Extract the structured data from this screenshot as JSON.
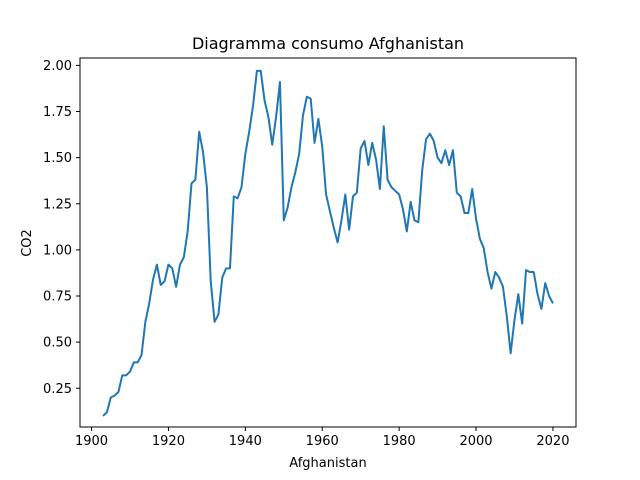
{
  "chart_data": {
    "type": "line",
    "title": "Diagramma consumo Afghanistan",
    "xlabel": "Afghanistan",
    "ylabel": "CO2",
    "xlim": [
      1897,
      2026
    ],
    "ylim": [
      0.04,
      2.04
    ],
    "x_ticks": [
      1900,
      1920,
      1940,
      1960,
      1980,
      2000,
      2020
    ],
    "x_tick_labels": [
      "1900",
      "1920",
      "1940",
      "1960",
      "1980",
      "2000",
      "2020"
    ],
    "y_ticks": [
      0.25,
      0.5,
      0.75,
      1.0,
      1.25,
      1.5,
      1.75,
      2.0
    ],
    "y_tick_labels": [
      "0.25",
      "0.50",
      "0.75",
      "1.00",
      "1.25",
      "1.50",
      "1.75",
      "2.00"
    ],
    "grid": false,
    "series": [
      {
        "color": "#1f77b4",
        "x": [
          1903,
          1904,
          1905,
          1906,
          1907,
          1908,
          1909,
          1910,
          1911,
          1912,
          1913,
          1914,
          1915,
          1916,
          1917,
          1918,
          1919,
          1920,
          1921,
          1922,
          1923,
          1924,
          1925,
          1926,
          1927,
          1928,
          1929,
          1930,
          1931,
          1932,
          1933,
          1934,
          1935,
          1936,
          1937,
          1938,
          1939,
          1940,
          1941,
          1942,
          1943,
          1944,
          1945,
          1946,
          1947,
          1948,
          1949,
          1950,
          1951,
          1952,
          1953,
          1954,
          1955,
          1956,
          1957,
          1958,
          1959,
          1960,
          1961,
          1962,
          1963,
          1964,
          1965,
          1966,
          1967,
          1968,
          1969,
          1970,
          1971,
          1972,
          1973,
          1974,
          1975,
          1976,
          1977,
          1978,
          1979,
          1980,
          1981,
          1982,
          1983,
          1984,
          1985,
          1986,
          1987,
          1988,
          1989,
          1990,
          1991,
          1992,
          1993,
          1994,
          1995,
          1996,
          1997,
          1998,
          1999,
          2000,
          2001,
          2002,
          2003,
          2004,
          2005,
          2006,
          2007,
          2008,
          2009,
          2010,
          2011,
          2012,
          2013,
          2014,
          2015,
          2016,
          2017,
          2018,
          2019,
          2020
        ],
        "values": [
          0.1,
          0.12,
          0.2,
          0.21,
          0.23,
          0.32,
          0.32,
          0.34,
          0.39,
          0.39,
          0.43,
          0.61,
          0.71,
          0.84,
          0.92,
          0.81,
          0.83,
          0.92,
          0.9,
          0.8,
          0.92,
          0.96,
          1.1,
          1.36,
          1.38,
          1.64,
          1.53,
          1.34,
          0.83,
          0.61,
          0.65,
          0.85,
          0.9,
          0.9,
          1.29,
          1.28,
          1.34,
          1.52,
          1.64,
          1.78,
          1.97,
          1.97,
          1.81,
          1.72,
          1.57,
          1.72,
          1.91,
          1.16,
          1.23,
          1.34,
          1.42,
          1.52,
          1.73,
          1.83,
          1.82,
          1.58,
          1.71,
          1.56,
          1.3,
          1.21,
          1.12,
          1.04,
          1.16,
          1.3,
          1.11,
          1.29,
          1.31,
          1.55,
          1.59,
          1.46,
          1.58,
          1.49,
          1.33,
          1.67,
          1.38,
          1.34,
          1.32,
          1.3,
          1.22,
          1.1,
          1.26,
          1.16,
          1.15,
          1.43,
          1.6,
          1.63,
          1.59,
          1.5,
          1.47,
          1.54,
          1.46,
          1.54,
          1.31,
          1.29,
          1.2,
          1.2,
          1.33,
          1.17,
          1.06,
          1.01,
          0.88,
          0.79,
          0.88,
          0.85,
          0.8,
          0.64,
          0.44,
          0.62,
          0.76,
          0.6,
          0.89,
          0.88,
          0.88,
          0.76,
          0.68,
          0.82,
          0.75,
          0.71
        ]
      }
    ]
  }
}
